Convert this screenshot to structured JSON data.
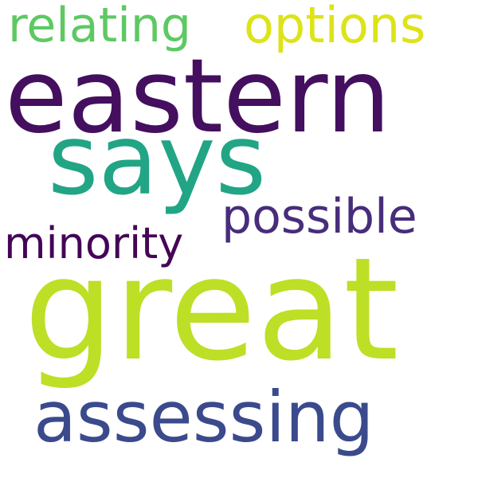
{
  "words": [
    {
      "id": "relating",
      "text": "relating",
      "color": "#5ec962"
    },
    {
      "id": "options",
      "text": "options",
      "color": "#dde318"
    },
    {
      "id": "eastern",
      "text": "eastern",
      "color": "#440f5f"
    },
    {
      "id": "says",
      "text": "says",
      "color": "#21a585"
    },
    {
      "id": "possible",
      "text": "possible",
      "color": "#472d7b"
    },
    {
      "id": "minority",
      "text": "minority",
      "color": "#450457"
    },
    {
      "id": "great",
      "text": "great",
      "color": "#bddf26"
    },
    {
      "id": "assessing",
      "text": "assessing",
      "color": "#3b4a8c"
    }
  ]
}
